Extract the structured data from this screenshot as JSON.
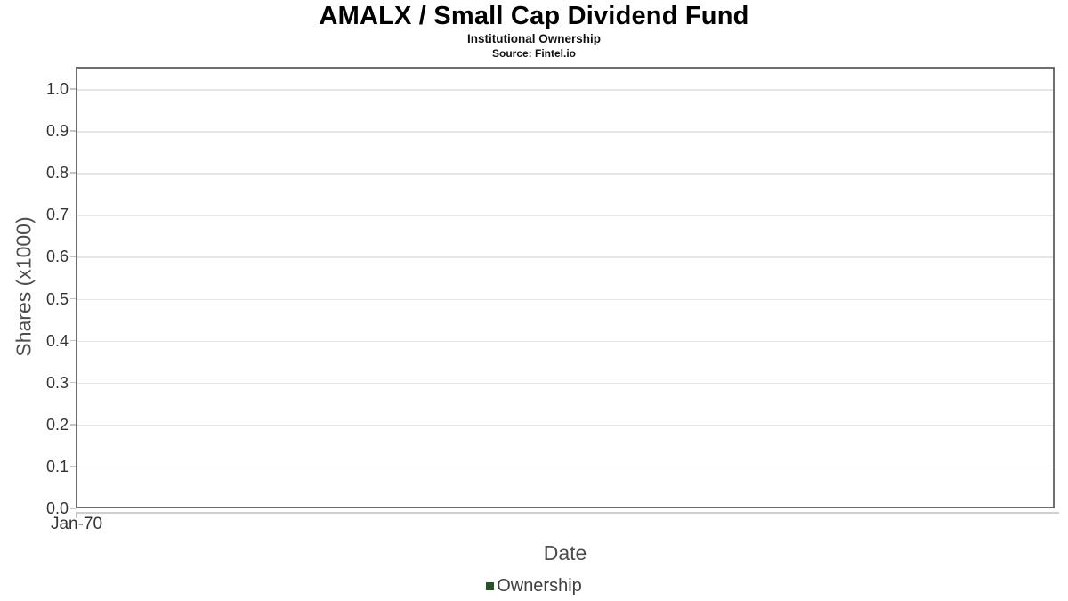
{
  "chart_data": {
    "type": "line",
    "title": "AMALX / Small Cap Dividend Fund",
    "subtitle": "Institutional Ownership",
    "source_note": "Source: Fintel.io",
    "xlabel": "Date",
    "ylabel": "Shares (x1000)",
    "ylim": [
      0.0,
      1.0
    ],
    "yticks": [
      1.0,
      0.9,
      0.8,
      0.7,
      0.6,
      0.5,
      0.4,
      0.3,
      0.2,
      0.1,
      0.0
    ],
    "ytick_labels": [
      "1.0",
      "0.9",
      "0.8",
      "0.7",
      "0.6",
      "0.5",
      "0.4",
      "0.3",
      "0.2",
      "0.1",
      "0.0"
    ],
    "xtick_labels": [
      "Jan-70"
    ],
    "grid": true,
    "legend_position": "bottom",
    "series": [
      {
        "name": "Ownership",
        "color": "#295229",
        "x": [],
        "values": []
      }
    ]
  },
  "colors": {
    "title_text": "#000000",
    "tick_label": "#333333",
    "axis_title": "#4d4d4d",
    "legend_text": "#404040",
    "plot_border": "#6e6e6e",
    "gridline": "#e6e6e6",
    "axis_line": "#cfcfcf",
    "series_ownership": "#295229"
  }
}
